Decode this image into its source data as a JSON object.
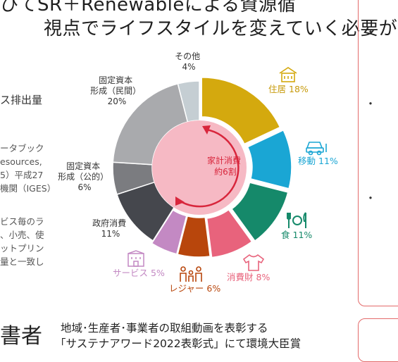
{
  "header": {
    "line1": "ひてSR＋Renewableによる資源循",
    "line2": "視点でライフスタイルを変えていく必要が"
  },
  "left_text": {
    "line1": "ス排出量",
    "line2": "ータブック",
    "line3": "esources,",
    "line4": "5）平成27",
    "line5": "機関（IGES）",
    "line6": "ビス毎のラ",
    "line7": "、小売、使",
    "line8": "ットプリン",
    "line9": "量と一致し"
  },
  "bottom": {
    "big_char": "書者",
    "line1": "地域･生産者･事業者の取組動画を表彰する",
    "line2": "「サステナアワード2022表彰式」にて環境大臣賞"
  },
  "bullets": [
    "・",
    "・",
    "・"
  ],
  "colors": {
    "housing": "#d4a90e",
    "mobility": "#1aa6d4",
    "food": "#15896a",
    "goods": "#e8637c",
    "leisure": "#b8460c",
    "services": "#c389c3",
    "government": "#45474d",
    "public_capital": "#7b7c80",
    "private_capital": "#a9aaad",
    "other": "#c5ced3",
    "center": "#f6b9c4",
    "arrow": "#d8263c",
    "frame": "#e36a6a"
  },
  "chart_data": {
    "type": "pie",
    "center_label_line1": "家計消費",
    "center_label_line2": "約6割",
    "slices": [
      {
        "label": "住居",
        "value": 18,
        "value_text": "18%",
        "color": "#d4a90e",
        "icon": "house-icon"
      },
      {
        "label": "移動",
        "value": 11,
        "value_text": "11%",
        "color": "#1aa6d4",
        "icon": "car-icon"
      },
      {
        "label": "食",
        "value": 11,
        "value_text": "11%",
        "color": "#15896a",
        "icon": "fork-knife-icon"
      },
      {
        "label": "消費財",
        "value": 8,
        "value_text": "8%",
        "color": "#e8637c",
        "icon": "shirt-icon"
      },
      {
        "label": "レジャー",
        "value": 6,
        "value_text": "6%",
        "color": "#b8460c",
        "icon": "family-icon"
      },
      {
        "label": "サービス",
        "value": 5,
        "value_text": "5%",
        "color": "#c389c3",
        "icon": "building-icon"
      },
      {
        "label": "政府消費",
        "value": 11,
        "value_text": "11%",
        "color": "#45474d"
      },
      {
        "label": "固定資本形成（公的）",
        "value": 6,
        "value_text": "6%",
        "color": "#7b7c80"
      },
      {
        "label": "固定資本形成（民間）",
        "value": 20,
        "value_text": "20%",
        "color": "#a9aaad"
      },
      {
        "label": "その他",
        "value": 4,
        "value_text": "4%",
        "color": "#c5ced3"
      }
    ]
  }
}
